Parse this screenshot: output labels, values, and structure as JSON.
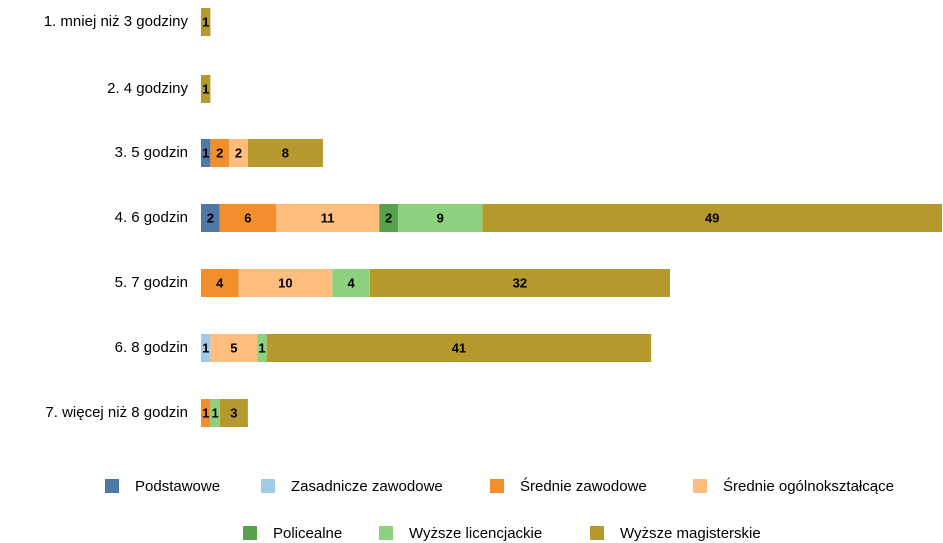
{
  "chart_data": {
    "type": "stacked-bar-horizontal",
    "categories": [
      "1. mniej niż 3 godziny",
      "2. 4 godziny",
      "3. 5 godzin",
      "4. 6 godzin",
      "5. 7 godzin",
      "6. 8 godzin",
      "7. więcej niż 8 godzin"
    ],
    "series": [
      {
        "name": "Podstawowe",
        "color": "#4e79a7",
        "values": [
          null,
          null,
          1,
          2,
          null,
          null,
          null
        ]
      },
      {
        "name": "Zasadnicze zawodowe",
        "color": "#a0cbe8",
        "values": [
          null,
          null,
          null,
          null,
          null,
          1,
          null
        ]
      },
      {
        "name": "Średnie zawodowe",
        "color": "#f28e2b",
        "values": [
          null,
          null,
          2,
          6,
          4,
          null,
          1
        ]
      },
      {
        "name": "Średnie ogólnokształcące",
        "color": "#ffbe7d",
        "values": [
          null,
          null,
          2,
          11,
          10,
          5,
          null
        ]
      },
      {
        "name": "Policealne",
        "color": "#59a14f",
        "values": [
          null,
          null,
          null,
          2,
          null,
          null,
          null
        ]
      },
      {
        "name": "Wyższe licencjackie",
        "color": "#8cd17d",
        "values": [
          null,
          null,
          null,
          9,
          4,
          1,
          1
        ]
      },
      {
        "name": "Wyższe magisterskie",
        "color": "#b6992d",
        "values": [
          1,
          1,
          8,
          49,
          32,
          41,
          3
        ]
      }
    ]
  }
}
